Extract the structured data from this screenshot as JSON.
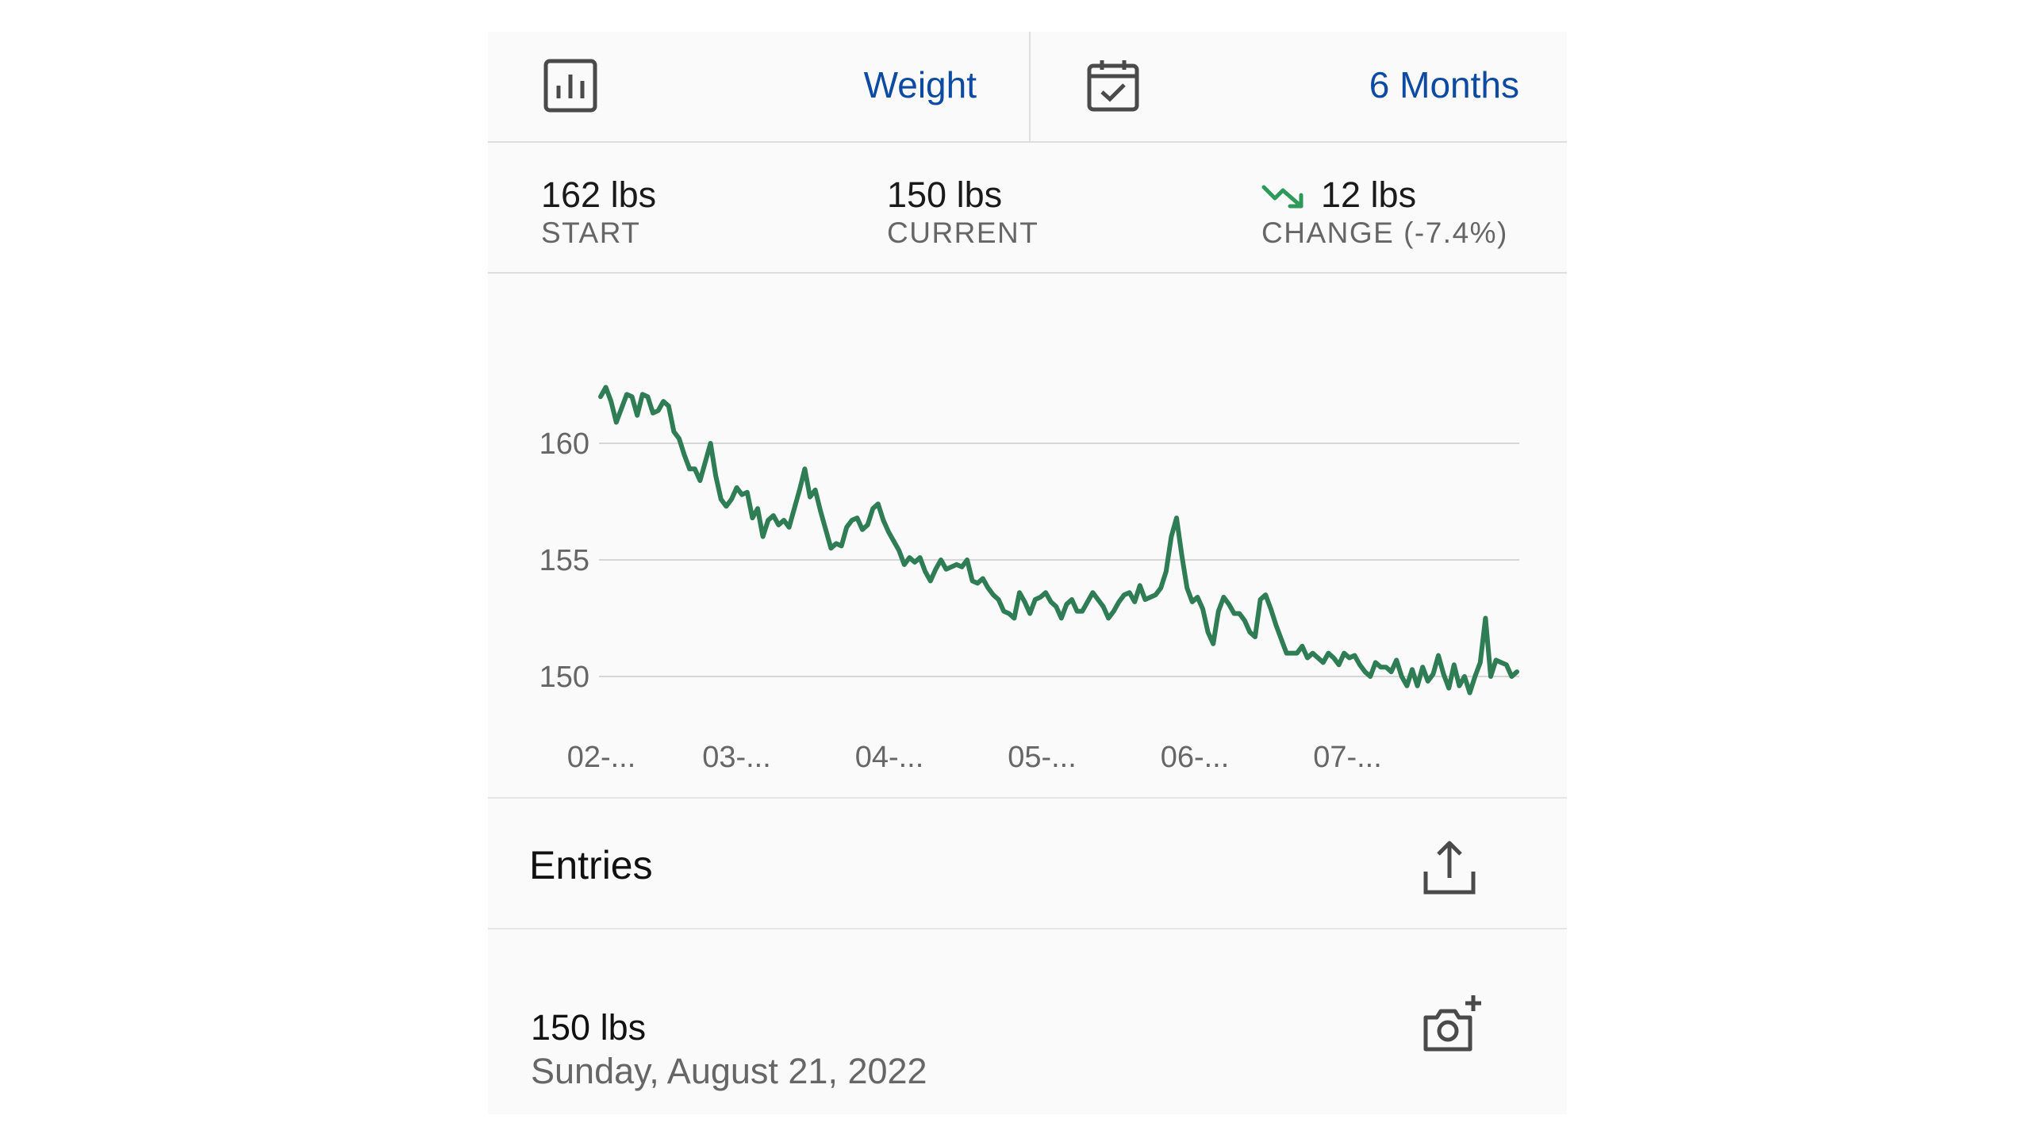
{
  "selectors": {
    "metric_label": "Weight",
    "range_label": "6 Months"
  },
  "stats": {
    "start_value": "162 lbs",
    "start_label": "START",
    "current_value": "150 lbs",
    "current_label": "CURRENT",
    "change_value": "12 lbs",
    "change_label": "CHANGE (-7.4%)",
    "change_direction": "down"
  },
  "icons": {
    "metric": "bar-chart-icon",
    "range": "calendar-check-icon",
    "trend": "trend-down-icon",
    "share": "share-icon",
    "add_photo": "camera-add-icon"
  },
  "colors": {
    "accent": "#0d4aa1",
    "line": "#2e7d55",
    "trend": "#2e9a5a"
  },
  "chart_data": {
    "type": "line",
    "title": "",
    "xlabel": "",
    "ylabel": "",
    "y_ticks": [
      160,
      155,
      150
    ],
    "ylim": [
      148.5,
      163.5
    ],
    "x_ticks": [
      {
        "label": "02-...",
        "pos": 0.0
      },
      {
        "label": "03-...",
        "pos": 0.155
      },
      {
        "label": "04-...",
        "pos": 0.33
      },
      {
        "label": "05-...",
        "pos": 0.505
      },
      {
        "label": "06-...",
        "pos": 0.68
      },
      {
        "label": "07-...",
        "pos": 0.855
      }
    ],
    "grid": true,
    "series": [
      {
        "values": [
          162.0,
          162.4,
          161.8,
          160.9,
          161.5,
          162.1,
          162.0,
          161.2,
          162.1,
          162.0,
          161.3,
          161.4,
          161.8,
          161.6,
          160.5,
          160.2,
          159.5,
          158.9,
          158.9,
          158.4,
          159.2,
          160.0,
          158.6,
          157.6,
          157.3,
          157.6,
          158.1,
          157.8,
          157.9,
          156.8,
          157.2,
          156.0,
          156.7,
          156.9,
          156.5,
          156.7,
          156.4,
          157.2,
          158.0,
          158.9,
          157.7,
          158.0,
          157.1,
          156.3,
          155.5,
          155.7,
          155.6,
          156.4,
          156.7,
          156.8,
          156.3,
          156.5,
          157.2,
          157.4,
          156.7,
          156.2,
          155.8,
          155.4,
          154.8,
          155.1,
          154.9,
          155.1,
          154.5,
          154.1,
          154.6,
          155.0,
          154.6,
          154.7,
          154.8,
          154.7,
          155.0,
          154.1,
          154.0,
          154.2,
          153.8,
          153.5,
          153.3,
          152.8,
          152.7,
          152.5,
          153.6,
          153.2,
          152.7,
          153.3,
          153.4,
          153.6,
          153.2,
          153.0,
          152.5,
          153.1,
          153.3,
          152.8,
          152.8,
          153.2,
          153.6,
          153.3,
          153.0,
          152.5,
          152.8,
          153.2,
          153.5,
          153.6,
          153.2,
          153.9,
          153.3,
          153.4,
          153.5,
          153.8,
          154.5,
          156.0,
          156.8,
          155.2,
          153.8,
          153.2,
          153.4,
          152.9,
          151.9,
          151.4,
          152.8,
          153.4,
          153.1,
          152.7,
          152.7,
          152.4,
          151.9,
          151.7,
          153.3,
          153.5,
          152.9,
          152.2,
          151.6,
          151.0,
          151.0,
          151.0,
          151.3,
          150.8,
          151.0,
          150.8,
          150.6,
          151.0,
          150.8,
          150.5,
          151.0,
          150.8,
          150.9,
          150.5,
          150.2,
          150.0,
          150.6,
          150.4,
          150.4,
          150.2,
          150.7,
          150.0,
          149.6,
          150.3,
          149.6,
          150.4,
          149.8,
          150.1,
          150.9,
          150.1,
          149.5,
          150.5,
          149.6,
          150.0,
          149.3,
          150.0,
          150.6,
          152.5,
          150.0,
          150.7,
          150.6,
          150.5,
          150.0,
          150.2
        ]
      }
    ]
  },
  "entries": {
    "title": "Entries",
    "items": [
      {
        "weight": "150 lbs",
        "date": "Sunday, August 21, 2022"
      }
    ]
  }
}
